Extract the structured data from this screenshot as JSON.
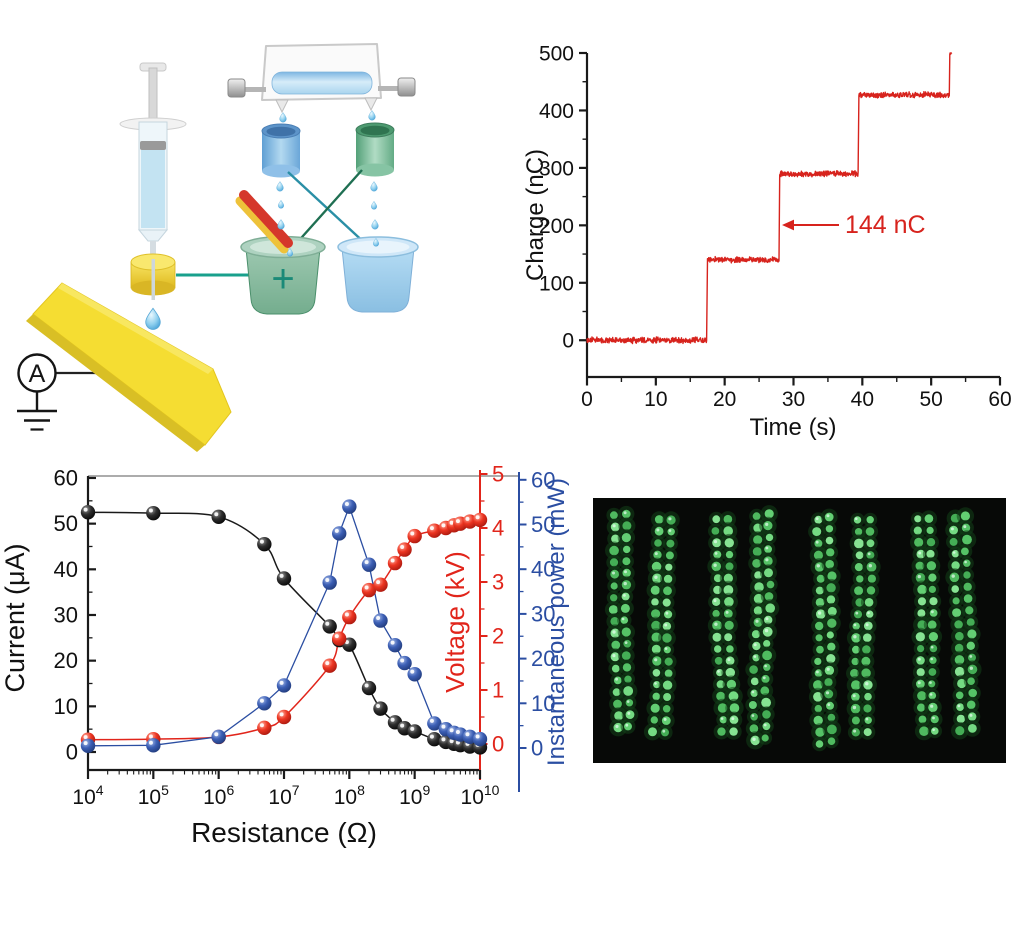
{
  "figure": {
    "background": "#ffffff"
  },
  "schematic": {
    "ammeter_label": "A",
    "electrode_plus_label": "+",
    "gold_color": "#f5dd32",
    "wire_teal": "#18a08c",
    "wire_blue": "#2a8fa6",
    "wire_green": "#1f6f52"
  },
  "chart_data": [
    {
      "id": "charge_vs_time",
      "type": "line",
      "title": "",
      "xlabel": "Time (s)",
      "ylabel": "Charge (nC)",
      "xlim": [
        0,
        60
      ],
      "ylim": [
        -64,
        500
      ],
      "xticks": [
        0,
        10,
        20,
        30,
        40,
        50,
        60
      ],
      "yticks": [
        0,
        100,
        200,
        300,
        400,
        500
      ],
      "grid": false,
      "line_color": "#d7231d",
      "noise_amplitude_nC": 4,
      "steps": [
        {
          "t_start": 0.0,
          "t_end": 17.4,
          "charge": 0
        },
        {
          "t_start": 17.5,
          "t_end": 27.9,
          "charge": 140
        },
        {
          "t_start": 28.0,
          "t_end": 39.4,
          "charge": 290
        },
        {
          "t_start": 39.5,
          "t_end": 52.65,
          "charge": 427
        },
        {
          "t_start": 52.7,
          "t_end": 53.0,
          "charge": 500
        }
      ],
      "annotation": {
        "text": "144 nC",
        "arrow_tip_t": 28.5,
        "arrow_tip_charge": 205,
        "color": "#d7231d"
      }
    },
    {
      "id": "resistance_sweep",
      "type": "scatter",
      "title": "",
      "xlabel": "Resistance (Ω)",
      "x_scale": "log",
      "x_tick_exponents": [
        4,
        5,
        6,
        7,
        8,
        9,
        10
      ],
      "xlim": [
        10000,
        10000000000
      ],
      "resistance_ohm": [
        10000.0,
        100000.0,
        1000000.0,
        5000000.0,
        10000000.0,
        50000000.0,
        70000000.0,
        100000000.0,
        200000000.0,
        300000000.0,
        500000000.0,
        700000000.0,
        1000000000.0,
        2000000000.0,
        3000000000.0,
        4000000000.0,
        5000000000.0,
        7000000000.0,
        10000000000.0
      ],
      "series": [
        {
          "name": "Current (μA)",
          "axis": "left",
          "color": "#141414",
          "ylim": [
            0,
            60
          ],
          "yticks": [
            0,
            10,
            20,
            30,
            40,
            50,
            60
          ],
          "values": [
            52.5,
            52.3,
            51.5,
            45.5,
            38.0,
            27.5,
            24.5,
            23.5,
            14.0,
            9.5,
            6.5,
            5.2,
            4.5,
            2.8,
            2.2,
            1.8,
            1.5,
            1.2,
            1.0
          ]
        },
        {
          "name": "Voltage (kV)",
          "axis": "right_inner",
          "color": "#e1251b",
          "ylim": [
            0,
            5
          ],
          "yticks": [
            0,
            1,
            2,
            3,
            4,
            5
          ],
          "values": [
            0.08,
            0.09,
            0.13,
            0.3,
            0.5,
            1.45,
            1.95,
            2.35,
            2.85,
            2.95,
            3.35,
            3.6,
            3.85,
            3.95,
            4.0,
            4.05,
            4.08,
            4.12,
            4.15
          ]
        },
        {
          "name": "Instantaneous power (mW)",
          "axis": "right_outer",
          "color": "#2b4ea2",
          "ylim": [
            0,
            60
          ],
          "yticks": [
            0,
            10,
            20,
            30,
            40,
            50,
            60
          ],
          "values": [
            0.5,
            0.6,
            2.5,
            10.0,
            14.0,
            37.0,
            48.0,
            54.0,
            41.0,
            28.5,
            23.0,
            19.0,
            16.5,
            5.5,
            4.2,
            3.4,
            3.0,
            2.5,
            2.0
          ]
        }
      ],
      "legend": "none"
    }
  ],
  "led_photo": {
    "background": "#070907",
    "strips": 8,
    "columns_per_strip": 2,
    "dots_per_column": 19,
    "dot_color_palette": [
      "#44ad55",
      "#55c266",
      "#63cf73",
      "#74da82",
      "#4fba5f",
      "#86e392"
    ]
  }
}
